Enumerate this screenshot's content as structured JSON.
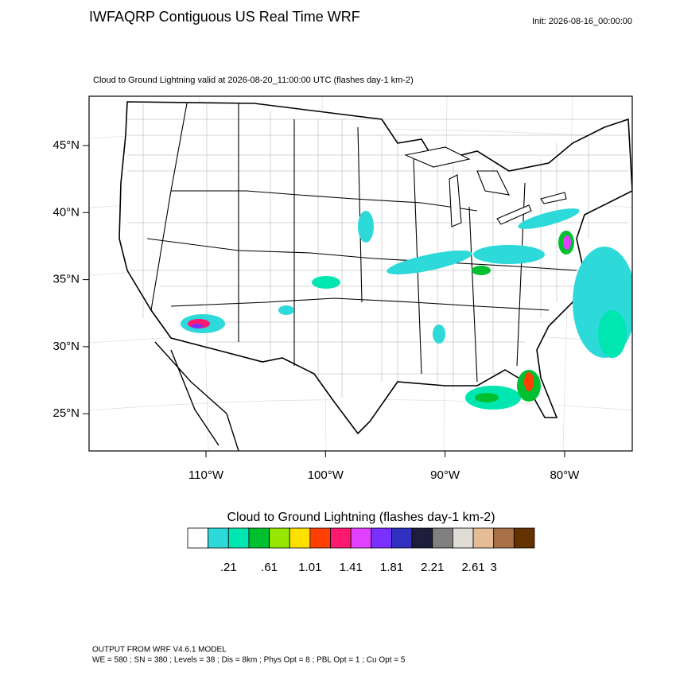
{
  "header": {
    "title": "IWFAQRP Contiguous US Real Time WRF",
    "init": "Init: 2026-08-16_00:00:00"
  },
  "map": {
    "subtitle": "Cloud to Ground Lightning valid at 2026-08-20_11:00:00 UTC   (flashes day-1 km-2)",
    "lat_labels": [
      "45°N",
      "40°N",
      "35°N",
      "30°N",
      "25°N"
    ],
    "lon_labels": [
      "110°W",
      "100°W",
      "90°W",
      "80°W"
    ]
  },
  "colorbar": {
    "title": "Cloud to Ground Lightning  (flashes day-1 km-2)",
    "colors": [
      "#ffffff",
      "#2ed9d9",
      "#00e6b0",
      "#00c030",
      "#96e600",
      "#ffe000",
      "#ff4000",
      "#ff1a70",
      "#e040ff",
      "#7a30ff",
      "#3030c0",
      "#1e1e3c",
      "#808080",
      "#e0dcd6",
      "#e6bc96",
      "#a87046",
      "#643200"
    ],
    "labels": [
      ".21",
      ".61",
      "1.01",
      "1.41",
      "1.81",
      "2.21",
      "2.61",
      "3"
    ]
  },
  "footer": {
    "line1": "OUTPUT FROM WRF V4.6.1 MODEL",
    "line2": "WE = 580 ; SN = 380 ; Levels = 38 ; Dis = 8km ; Phys Opt = 8 ; PBL Opt = 1 ; Cu Opt = 5"
  }
}
